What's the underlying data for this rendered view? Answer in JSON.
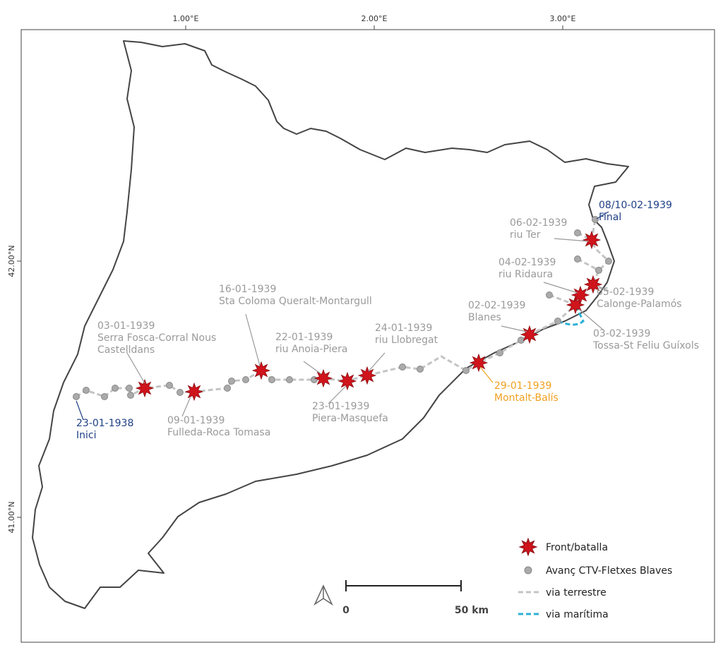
{
  "map": {
    "x_ticks": [
      "1.00°E",
      "2.00°E",
      "3.00°E"
    ],
    "y_ticks": [
      "42.00°N",
      "41.00°N"
    ],
    "events": [
      {
        "lines": [
          "23-01-1938",
          "Inici"
        ],
        "color": "#1f3f85"
      },
      {
        "lines": [
          "03-01-1939",
          "Serra Fosca-Corral Nous",
          "Castelldans"
        ],
        "color": "#9a9a9a"
      },
      {
        "lines": [
          "09-01-1939",
          "Fulleda-Roca Tomasa"
        ],
        "color": "#9a9a9a"
      },
      {
        "lines": [
          "16-01-1939",
          "Sta Coloma Queralt-Montargull"
        ],
        "color": "#9a9a9a"
      },
      {
        "lines": [
          "22-01-1939",
          "riu Anoia-Piera"
        ],
        "color": "#9a9a9a"
      },
      {
        "lines": [
          "23-01-1939",
          "Piera-Masquefa"
        ],
        "color": "#9a9a9a"
      },
      {
        "lines": [
          "24-01-1939",
          "riu Llobregat"
        ],
        "color": "#9a9a9a"
      },
      {
        "lines": [
          "29-01-1939",
          "Montalt-Balís"
        ],
        "color": "#f0a020"
      },
      {
        "lines": [
          "02-02-1939",
          "Blanes"
        ],
        "color": "#9a9a9a"
      },
      {
        "lines": [
          "03-02-1939",
          "Tossa-St Feliu Guíxols"
        ],
        "color": "#9a9a9a"
      },
      {
        "lines": [
          "04-02-1939",
          "riu Ridaura"
        ],
        "color": "#9a9a9a"
      },
      {
        "lines": [
          "05-02-1939",
          "Calonge-Palamós"
        ],
        "color": "#9a9a9a"
      },
      {
        "lines": [
          "06-02-1939",
          "riu Ter"
        ],
        "color": "#9a9a9a"
      },
      {
        "lines": [
          "08/10-02-1939",
          "Final"
        ],
        "color": "#1f3f85"
      }
    ],
    "legend": [
      "Front/batalla",
      "Avanç CTV-Fletxes Blaves",
      "via terrestre",
      "via marítima"
    ],
    "scale": {
      "start": "0",
      "end": "50 km"
    }
  }
}
